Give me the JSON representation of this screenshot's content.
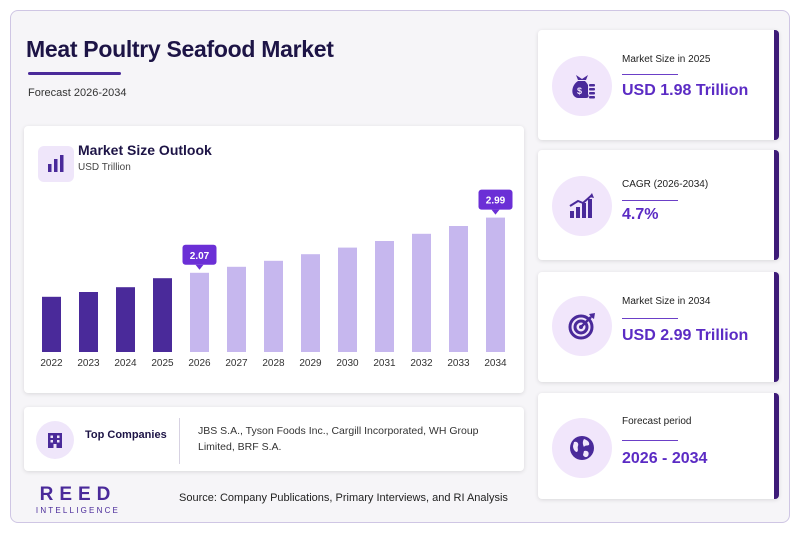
{
  "header": {
    "title": "Meat Poultry Seafood Market",
    "subtitle": "Forecast 2026-2034"
  },
  "chart_data": {
    "type": "bar",
    "title": "Market Size Outlook",
    "subtitle": "USD Trillion",
    "categories": [
      "2022",
      "2023",
      "2024",
      "2025",
      "2026",
      "2027",
      "2028",
      "2029",
      "2030",
      "2031",
      "2032",
      "2033",
      "2034"
    ],
    "values": [
      1.67,
      1.75,
      1.83,
      1.98,
      2.07,
      2.17,
      2.27,
      2.38,
      2.49,
      2.6,
      2.72,
      2.85,
      2.99
    ],
    "data_labels": [
      {
        "category": "2026",
        "label": "2.07"
      },
      {
        "category": "2034",
        "label": "2.99"
      }
    ],
    "colors": {
      "historical": "#4a2a9a",
      "forecast": "#c6b7ee",
      "label_bg": "#6b2fd6"
    },
    "historical_through": "2025",
    "grid": false
  },
  "stats": [
    {
      "label": "Market Size in 2025",
      "value": "USD 1.98 Trillion",
      "icon": "money-bag-icon"
    },
    {
      "label": "CAGR (2026-2034)",
      "value": "4.7%",
      "icon": "growth-chart-icon"
    },
    {
      "label": "Market Size in 2034",
      "value": "USD 2.99 Trillion",
      "icon": "target-icon"
    },
    {
      "label": "Forecast period",
      "value": "2026 - 2034",
      "icon": "globe-icon"
    }
  ],
  "companies": {
    "label": "Top Companies",
    "text": "JBS S.A., Tyson Foods Inc., Cargill Incorporated, WH Group Limited, BRF S.A."
  },
  "brand": {
    "name": "REED",
    "tagline": "INTELLIGENCE"
  },
  "source": "Source: Company Publications, Primary Interviews, and RI Analysis"
}
